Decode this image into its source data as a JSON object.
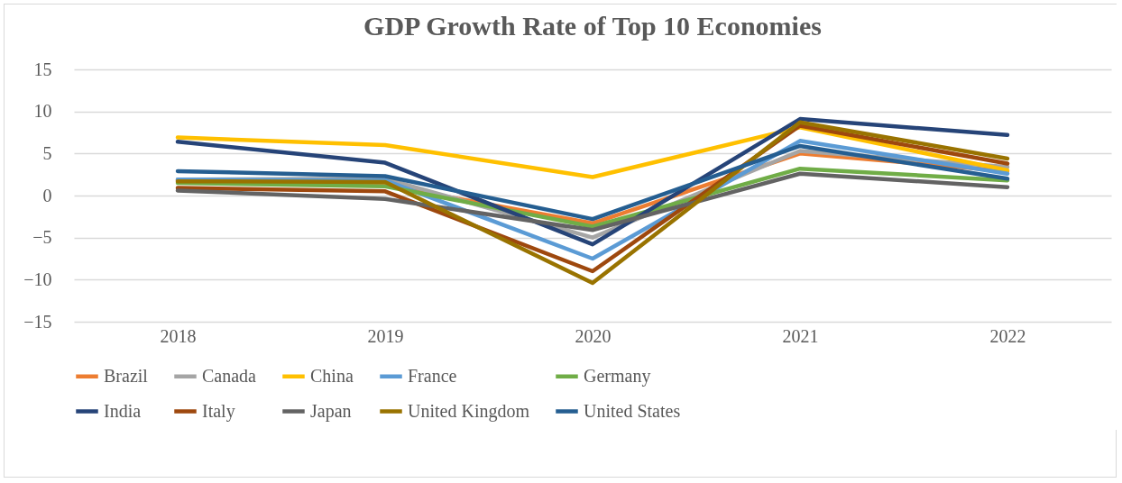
{
  "chart_data": {
    "type": "line",
    "title": "GDP Growth Rate of Top 10 Economies",
    "categories": [
      "2018",
      "2019",
      "2020",
      "2021",
      "2022"
    ],
    "ylim": [
      -15,
      15
    ],
    "yticks": [
      -15,
      -10,
      -5,
      0,
      5,
      10,
      15
    ],
    "grid": "y",
    "legend": "bottom",
    "marker": "none",
    "line_style": "solid",
    "series": [
      {
        "name": "Brazil",
        "color": "#ed7d31",
        "values": [
          1.8,
          1.2,
          -3.3,
          5.0,
          2.9
        ]
      },
      {
        "name": "Canada",
        "color": "#a5a5a5",
        "values": [
          1.9,
          2.0,
          -5.0,
          5.3,
          3.4
        ]
      },
      {
        "name": "China",
        "color": "#ffc000",
        "values": [
          6.9,
          6.0,
          2.2,
          8.1,
          3.0
        ]
      },
      {
        "name": "France",
        "color": "#5b9bd5",
        "values": [
          1.9,
          1.8,
          -7.5,
          6.5,
          2.6
        ]
      },
      {
        "name": "Germany",
        "color": "#70ad47",
        "values": [
          1.5,
          1.1,
          -3.7,
          3.2,
          1.8
        ]
      },
      {
        "name": "India",
        "color": "#264478",
        "values": [
          6.4,
          3.9,
          -5.8,
          9.1,
          7.2
        ]
      },
      {
        "name": "Italy",
        "color": "#9e480e",
        "values": [
          0.9,
          0.5,
          -9.0,
          8.3,
          3.8
        ]
      },
      {
        "name": "Japan",
        "color": "#636363",
        "values": [
          0.6,
          -0.4,
          -4.1,
          2.6,
          1.0
        ]
      },
      {
        "name": "United Kingdom",
        "color": "#997300",
        "values": [
          1.7,
          1.6,
          -10.4,
          8.7,
          4.4
        ]
      },
      {
        "name": "United States",
        "color": "#255e91",
        "values": [
          2.9,
          2.3,
          -2.8,
          5.9,
          2.0
        ]
      }
    ]
  }
}
